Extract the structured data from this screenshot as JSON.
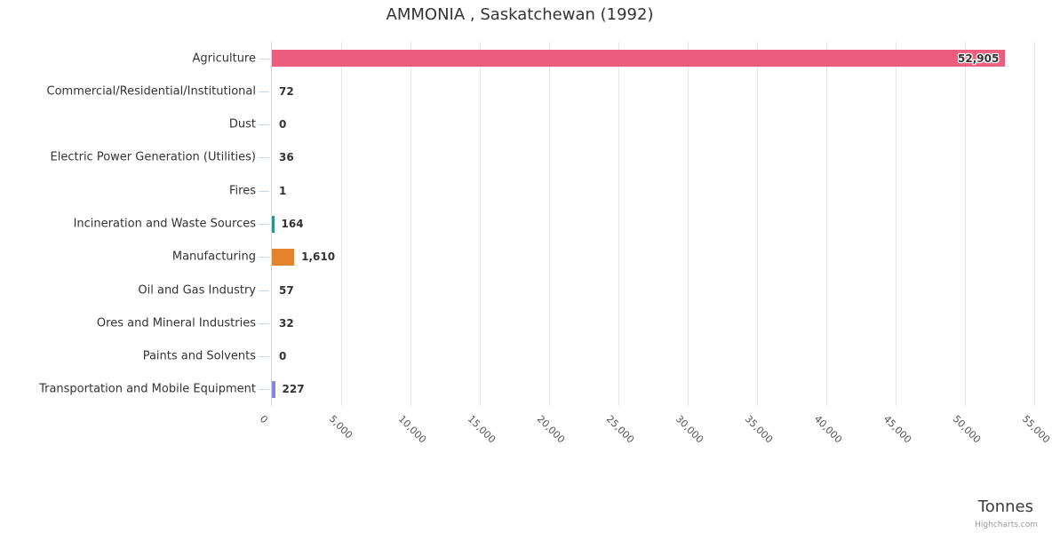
{
  "chart": {
    "title": "AMMONIA , Saskatchewan (1992)",
    "axis_title": "Tonnes",
    "credit": "Highcharts.com"
  },
  "chart_data": {
    "type": "bar",
    "orientation": "horizontal",
    "title": "AMMONIA , Saskatchewan (1992)",
    "xlabel": "Tonnes",
    "ylabel": "",
    "categories": [
      "Agriculture",
      "Commercial/Residential/Institutional",
      "Dust",
      "Electric Power Generation (Utilities)",
      "Fires",
      "Incineration and Waste Sources",
      "Manufacturing",
      "Oil and Gas Industry",
      "Ores and Mineral Industries",
      "Paints and Solvents",
      "Transportation and Mobile Equipment"
    ],
    "values": [
      52905,
      72,
      0,
      36,
      1,
      164,
      1610,
      57,
      32,
      0,
      227
    ],
    "value_labels": [
      "52,905",
      "72",
      "0",
      "36",
      "1",
      "164",
      "1,610",
      "57",
      "32",
      "0",
      "227"
    ],
    "colors": [
      "#ed5c7d",
      "#434348",
      "#90ed7d",
      "#f7a35c",
      "#7cb5ec",
      "#2b908f",
      "#e4832d",
      "#e4d354",
      "#f45b5b",
      "#91e8e1",
      "#8085e9"
    ],
    "xlim": [
      0,
      55000
    ],
    "tick_interval": 5000,
    "tick_labels": [
      "0",
      "5,000",
      "10,000",
      "15,000",
      "20,000",
      "25,000",
      "30,000",
      "35,000",
      "40,000",
      "45,000",
      "50,000",
      "55,000"
    ],
    "tick_label_rotation_deg": 45,
    "grid": true,
    "legend": false,
    "grid_color": "#e6e6e6",
    "axis_line_color": "#ccd6eb",
    "tick_label_color": "#555555",
    "category_label_color": "#333333",
    "data_label_color": "#333333",
    "background_color": "#ffffff"
  }
}
